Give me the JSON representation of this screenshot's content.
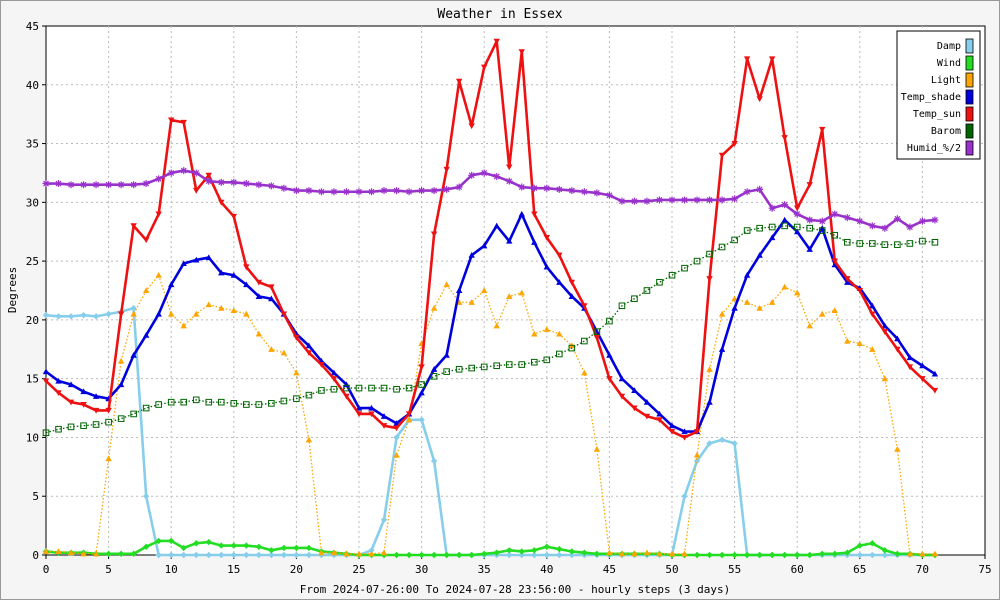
{
  "chart_data": {
    "type": "line",
    "title": "Weather in Essex",
    "xlabel": "From 2024-07-26:00 To 2024-07-28 23:56:00 - hourly steps (3 days)",
    "ylabel": "Degrees",
    "xlim": [
      0,
      75
    ],
    "ylim": [
      0,
      45
    ],
    "x_ticks": [
      0,
      5,
      10,
      15,
      20,
      25,
      30,
      35,
      40,
      45,
      50,
      55,
      60,
      65,
      70,
      75
    ],
    "y_ticks": [
      0,
      5,
      10,
      15,
      20,
      25,
      30,
      35,
      40,
      45
    ],
    "grid": true,
    "legend_position": "top-right",
    "series": [
      {
        "name": "Damp",
        "color": "#87CEEB",
        "style": "solid",
        "marker": "diamond",
        "values": [
          20.4,
          20.3,
          20.3,
          20.4,
          20.3,
          20.5,
          20.7,
          21.0,
          5.0,
          0,
          0,
          0,
          0,
          0,
          0,
          0,
          0,
          0,
          0,
          0,
          0,
          0,
          0,
          0,
          0,
          0,
          0.4,
          3.0,
          10.0,
          11.5,
          11.5,
          8.0,
          0,
          0,
          0,
          0,
          0,
          0,
          0,
          0,
          0,
          0,
          0,
          0,
          0,
          0,
          0,
          0,
          0,
          0,
          0,
          5.0,
          8.0,
          9.5,
          9.8,
          9.5,
          0,
          0,
          0,
          0,
          0,
          0,
          0,
          0,
          0,
          0,
          0,
          0,
          0,
          0,
          0,
          0
        ]
      },
      {
        "name": "Wind",
        "color": "#22DD22",
        "style": "solid",
        "marker": "diamond",
        "values": [
          0.3,
          0.2,
          0.2,
          0.2,
          0.1,
          0.1,
          0.1,
          0.1,
          0.7,
          1.2,
          1.2,
          0.6,
          1.0,
          1.1,
          0.8,
          0.8,
          0.8,
          0.7,
          0.4,
          0.6,
          0.6,
          0.6,
          0.3,
          0.2,
          0.1,
          0,
          0,
          0,
          0,
          0,
          0,
          0,
          0,
          0,
          0,
          0.1,
          0.2,
          0.4,
          0.3,
          0.4,
          0.7,
          0.5,
          0.3,
          0.2,
          0.1,
          0.1,
          0.1,
          0.1,
          0.1,
          0.1,
          0,
          0,
          0,
          0,
          0,
          0,
          0,
          0,
          0,
          0,
          0,
          0,
          0.1,
          0.1,
          0.2,
          0.8,
          1.0,
          0.4,
          0.1,
          0.1,
          0,
          0
        ]
      },
      {
        "name": "Light",
        "color": "#FFA500",
        "style": "dotted",
        "marker": "triangle",
        "values": [
          0.3,
          0.3,
          0.2,
          0.1,
          0.1,
          8.2,
          16.5,
          20.5,
          22.5,
          23.8,
          20.5,
          19.5,
          20.5,
          21.3,
          21.0,
          20.8,
          20.5,
          18.8,
          17.5,
          17.2,
          15.5,
          9.8,
          0.2,
          0.2,
          0.1,
          0.1,
          0.1,
          0.2,
          8.5,
          11.5,
          18.0,
          21.0,
          23.0,
          21.5,
          21.5,
          22.5,
          19.5,
          22.0,
          22.3,
          18.8,
          19.2,
          18.8,
          17.8,
          15.5,
          9.0,
          0.2,
          0.1,
          0.1,
          0.2,
          0.1,
          0.1,
          0.1,
          8.5,
          15.8,
          20.5,
          21.8,
          21.5,
          21.0,
          21.5,
          22.8,
          22.3,
          19.5,
          20.5,
          20.8,
          18.2,
          18.0,
          17.5,
          15.0,
          9.0,
          0.1,
          0.1,
          0.1
        ]
      },
      {
        "name": "Temp_shade",
        "color": "#0000DD",
        "style": "solid",
        "marker": "triangle",
        "values": [
          15.6,
          14.8,
          14.5,
          13.9,
          13.5,
          13.3,
          14.5,
          17.0,
          18.7,
          20.5,
          23.0,
          24.8,
          25.1,
          25.3,
          24.0,
          23.8,
          23.0,
          22.0,
          21.8,
          20.5,
          18.8,
          17.8,
          16.5,
          15.5,
          14.5,
          12.5,
          12.5,
          11.8,
          11.2,
          12.0,
          13.8,
          15.8,
          17.0,
          22.5,
          25.5,
          26.3,
          28.0,
          26.7,
          29.0,
          26.6,
          24.5,
          23.2,
          22.0,
          21.0,
          19.0,
          17.0,
          15.0,
          14.0,
          13.0,
          12.0,
          11.0,
          10.5,
          10.5,
          13.0,
          17.5,
          21.0,
          23.8,
          25.5,
          27.0,
          28.5,
          27.5,
          26.0,
          27.8,
          24.7,
          23.2,
          22.7,
          21.2,
          19.5,
          18.4,
          16.8,
          16.1,
          15.4
        ]
      },
      {
        "name": "Temp_sun",
        "color": "#EE1111",
        "style": "solid",
        "marker": "inverted-triangle",
        "values": [
          14.8,
          13.8,
          13.0,
          12.8,
          12.3,
          12.3,
          20.5,
          28.0,
          26.8,
          29.0,
          37.0,
          36.8,
          31.0,
          32.3,
          30.0,
          28.8,
          24.5,
          23.2,
          22.8,
          20.5,
          18.5,
          17.2,
          16.2,
          15.0,
          13.5,
          12.0,
          12.0,
          11.0,
          10.8,
          12.0,
          16.0,
          27.3,
          32.8,
          40.3,
          36.5,
          41.5,
          43.7,
          33.0,
          42.8,
          29.0,
          27.0,
          25.5,
          23.2,
          21.2,
          18.5,
          15.0,
          13.5,
          12.5,
          11.8,
          11.5,
          10.5,
          10.0,
          10.5,
          23.5,
          34.0,
          35.0,
          42.2,
          38.8,
          42.2,
          35.5,
          29.5,
          31.5,
          36.2,
          25.0,
          23.5,
          22.5,
          20.5,
          19.0,
          17.5,
          16.0,
          15.0,
          14.0
        ]
      },
      {
        "name": "Barom",
        "color": "#006400",
        "style": "dotted",
        "marker": "square",
        "values": [
          10.4,
          10.7,
          10.9,
          11.0,
          11.1,
          11.3,
          11.6,
          12.0,
          12.5,
          12.8,
          13.0,
          13.0,
          13.2,
          13.0,
          13.0,
          12.9,
          12.8,
          12.8,
          12.9,
          13.1,
          13.3,
          13.6,
          14.0,
          14.1,
          14.2,
          14.2,
          14.2,
          14.2,
          14.1,
          14.2,
          14.5,
          15.2,
          15.6,
          15.8,
          15.9,
          16.0,
          16.1,
          16.2,
          16.2,
          16.4,
          16.6,
          17.1,
          17.6,
          18.2,
          19.0,
          19.9,
          21.2,
          21.8,
          22.5,
          23.2,
          23.8,
          24.4,
          25.0,
          25.6,
          26.2,
          26.8,
          27.6,
          27.8,
          27.9,
          28.0,
          27.9,
          27.8,
          27.6,
          27.2,
          26.6,
          26.5,
          26.5,
          26.4,
          26.4,
          26.5,
          26.7,
          26.6
        ]
      },
      {
        "name": "Humid_%/2",
        "color": "#9932CC",
        "style": "solid",
        "marker": "star",
        "values": [
          31.6,
          31.6,
          31.5,
          31.5,
          31.5,
          31.5,
          31.5,
          31.5,
          31.6,
          32.0,
          32.5,
          32.7,
          32.5,
          31.8,
          31.7,
          31.7,
          31.6,
          31.5,
          31.4,
          31.2,
          31.0,
          31.0,
          30.9,
          30.9,
          30.9,
          30.9,
          30.9,
          31.0,
          31.0,
          30.9,
          31.0,
          31.0,
          31.1,
          31.3,
          32.3,
          32.5,
          32.2,
          31.8,
          31.3,
          31.2,
          31.2,
          31.1,
          31.0,
          30.9,
          30.8,
          30.6,
          30.1,
          30.1,
          30.1,
          30.2,
          30.2,
          30.2,
          30.2,
          30.2,
          30.2,
          30.3,
          30.9,
          31.1,
          29.5,
          29.8,
          29.0,
          28.5,
          28.4,
          29.0,
          28.7,
          28.4,
          28.0,
          27.8,
          28.6,
          27.9,
          28.4,
          28.5
        ]
      }
    ]
  }
}
